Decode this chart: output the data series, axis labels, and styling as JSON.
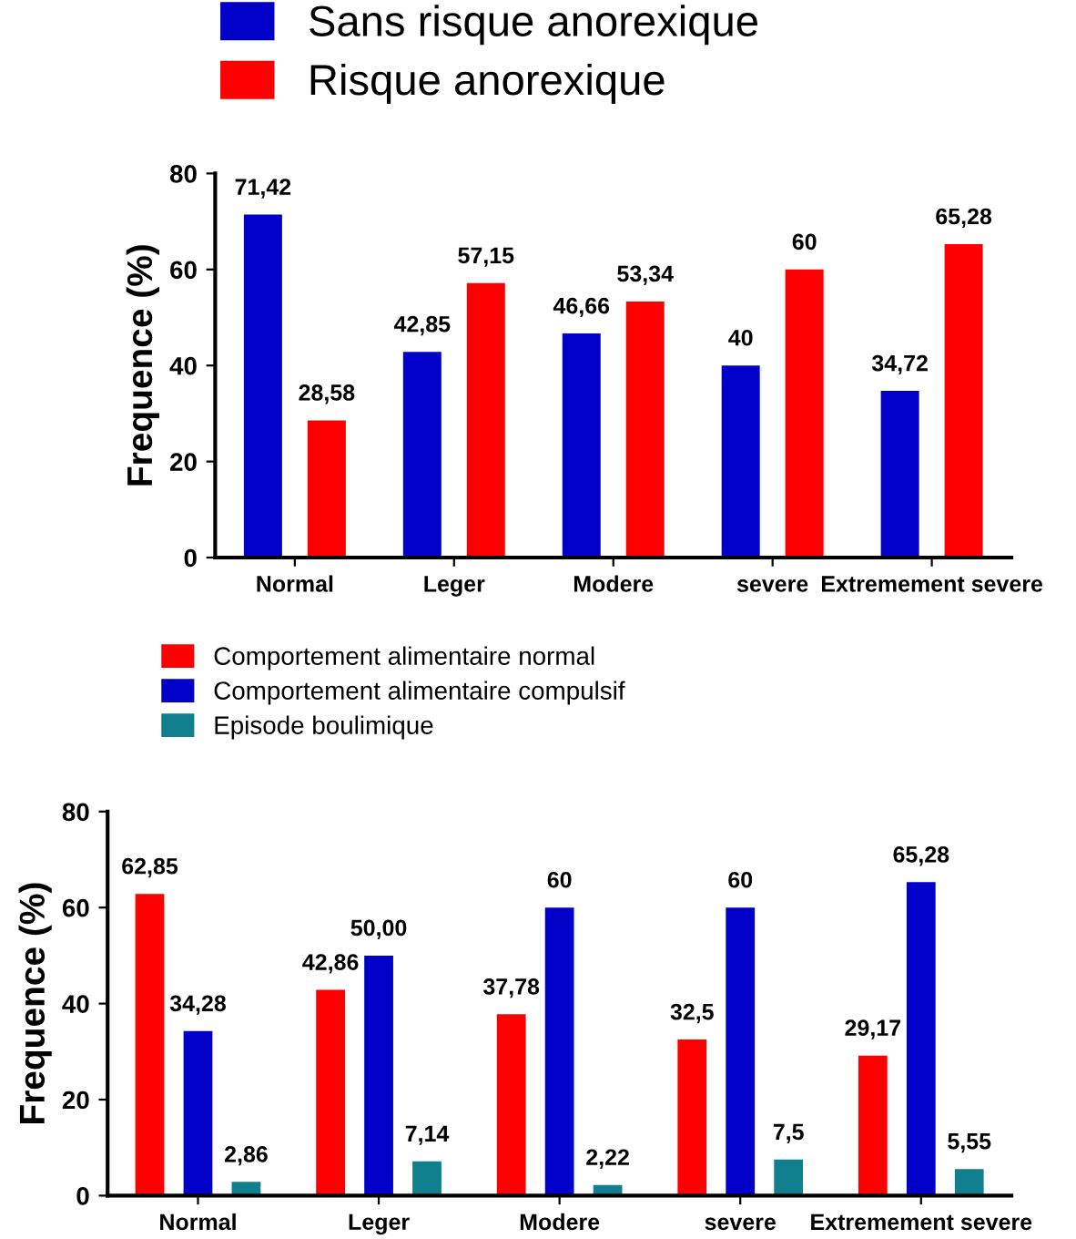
{
  "chart_data": [
    {
      "type": "bar",
      "categories": [
        "Normal",
        "Leger",
        "Modere",
        "severe",
        "Extremement severe"
      ],
      "ylabel": "Frequence (%)",
      "ylim": [
        0,
        80
      ],
      "yticks": [
        0,
        20,
        40,
        60,
        80
      ],
      "legend": "top",
      "grid": false,
      "series": [
        {
          "name": "Sans risque anorexique",
          "color": "#0000c8",
          "values": [
            71.42,
            42.85,
            46.66,
            40,
            34.72
          ],
          "value_labels": [
            "71,42",
            "42,85",
            "46,66",
            "40",
            "34,72"
          ]
        },
        {
          "name": "Risque anorexique",
          "color": "#ff0000",
          "values": [
            28.58,
            57.15,
            53.34,
            60,
            65.28
          ],
          "value_labels": [
            "28,58",
            "57,15",
            "53,34",
            "60",
            "65,28"
          ]
        }
      ]
    },
    {
      "type": "bar",
      "categories": [
        "Normal",
        "Leger",
        "Modere",
        "severe",
        "Extremement severe"
      ],
      "ylabel": "Frequence (%)",
      "ylim": [
        0,
        80
      ],
      "yticks": [
        0,
        20,
        40,
        60,
        80
      ],
      "legend": "top",
      "grid": false,
      "series": [
        {
          "name": "Comportement alimentaire normal",
          "color": "#ff0000",
          "values": [
            62.85,
            42.86,
            37.78,
            32.5,
            29.17
          ],
          "value_labels": [
            "62,85",
            "42,86",
            "37,78",
            "32,5",
            "29,17"
          ]
        },
        {
          "name": "Comportement alimentaire compulsif",
          "color": "#0000c8",
          "values": [
            34.28,
            50.0,
            60,
            60,
            65.28
          ],
          "value_labels": [
            "34,28",
            "50,00",
            "60",
            "60",
            "65,28"
          ]
        },
        {
          "name": "Episode boulimique",
          "color": "#10808f",
          "values": [
            2.86,
            7.14,
            2.22,
            7.5,
            5.55
          ],
          "value_labels": [
            "2,86",
            "7,14",
            "2,22",
            "7,5",
            "5,55"
          ]
        }
      ]
    }
  ]
}
